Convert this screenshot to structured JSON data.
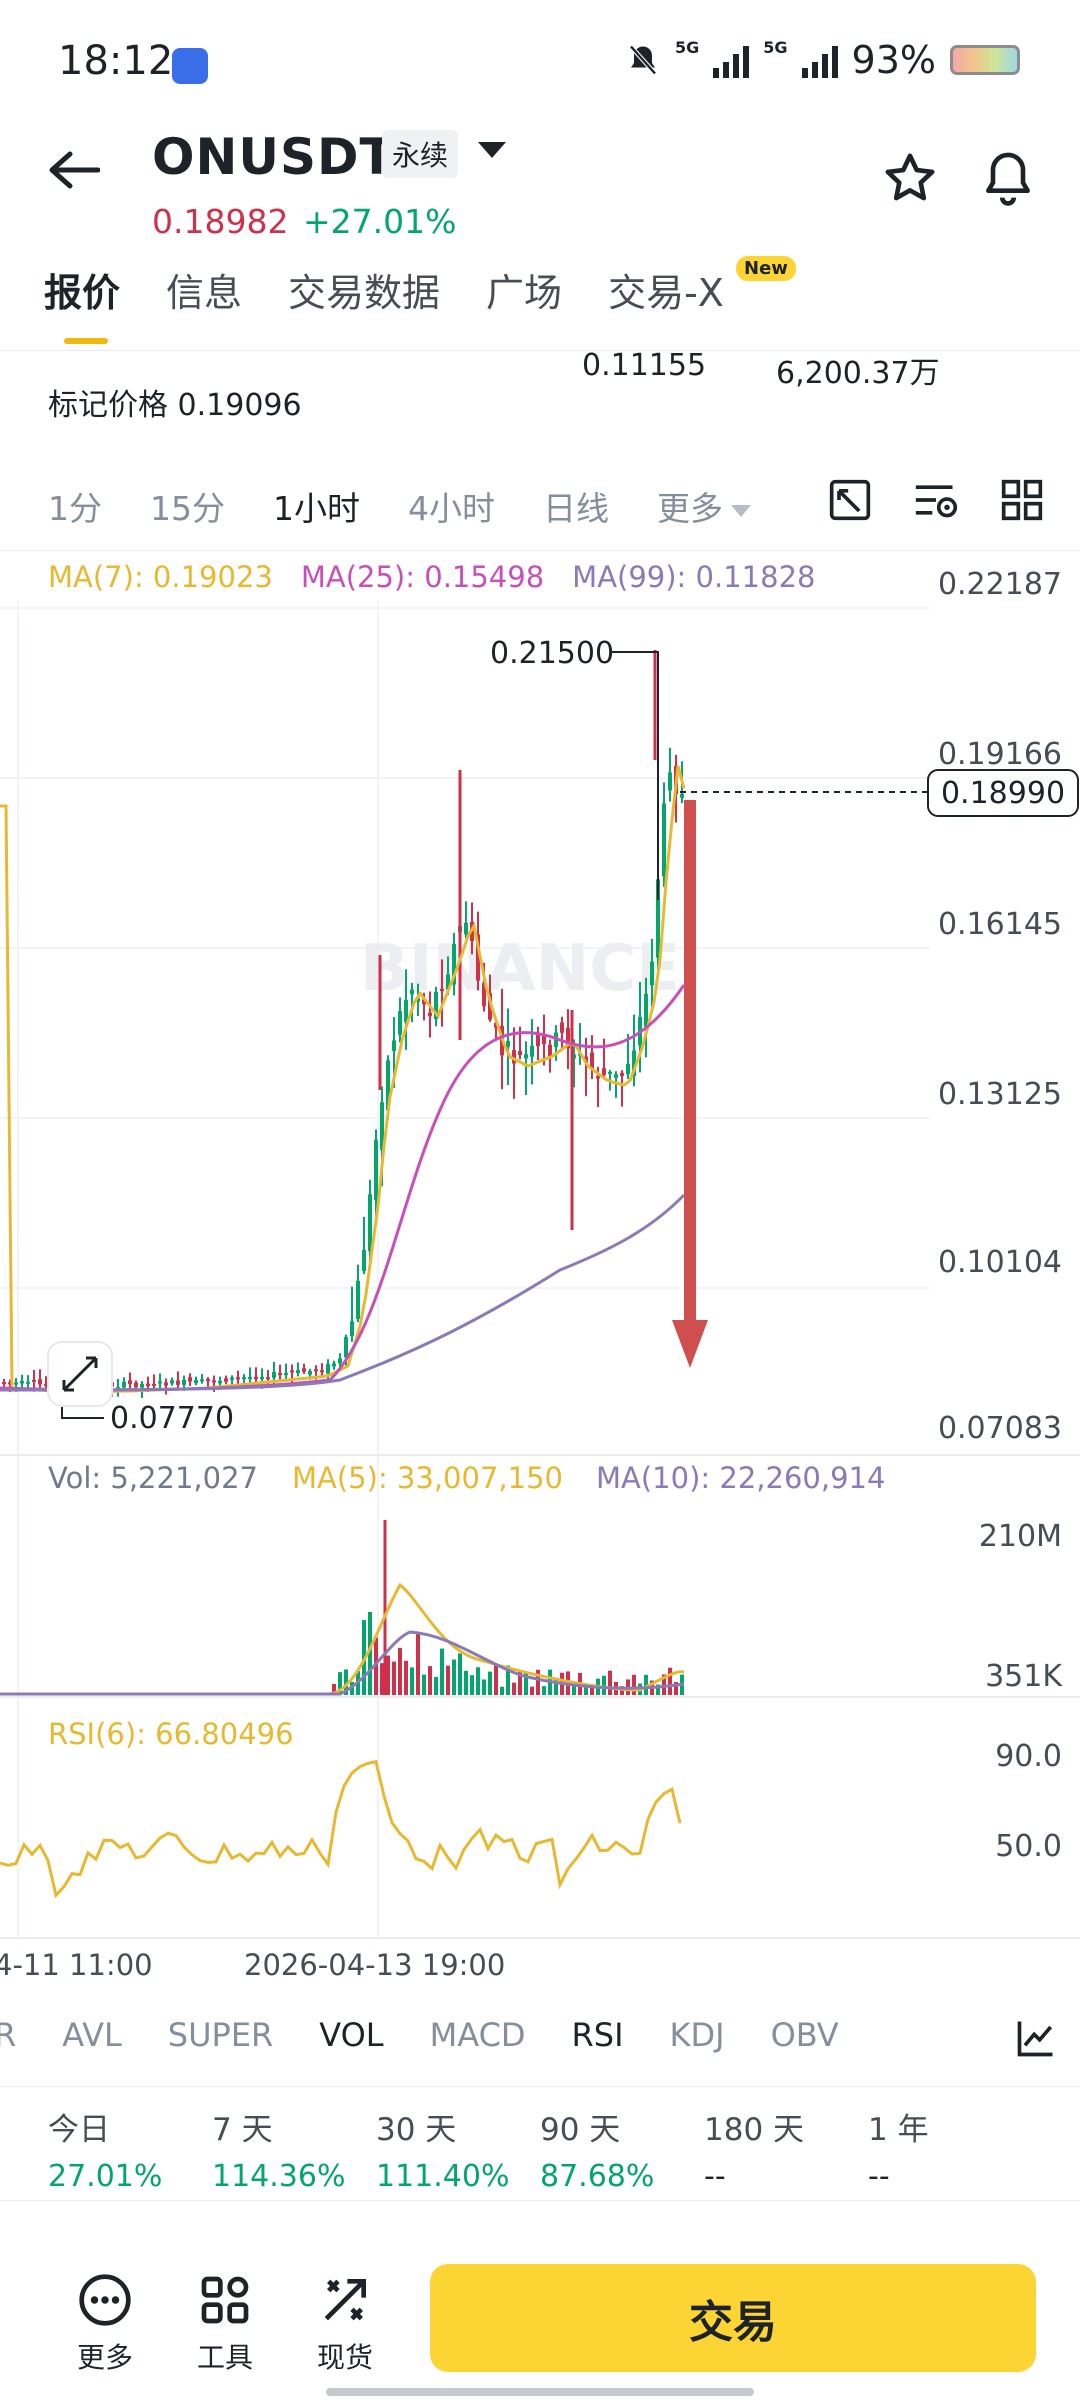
{
  "status_bar": {
    "time": "18:12",
    "net1": "5G",
    "net2": "5G",
    "battery": "93%"
  },
  "header": {
    "symbol": "ONUSDT",
    "contract_type": "永续",
    "last_price": "0.18982",
    "change_pct": "+27.01%"
  },
  "tabs": [
    {
      "label": "报价"
    },
    {
      "label": "信息"
    },
    {
      "label": "交易数据"
    },
    {
      "label": "广场"
    },
    {
      "label": "交易-X"
    }
  ],
  "new_badge": "New",
  "market_stats": {
    "mark_price_label": "标记价格",
    "mark_price": "0.19096",
    "low_value": "0.11155",
    "volume_value": "6,200.37万"
  },
  "intervals": {
    "items": [
      "1分",
      "15分",
      "1小时",
      "4小时",
      "日线"
    ],
    "more": "更多",
    "active": "1小时"
  },
  "ma_legend": {
    "ma7": "MA(7): 0.19023",
    "ma25": "MA(25): 0.15498",
    "ma99": "MA(99): 0.11828",
    "colors": {
      "ma7": "#e8b930",
      "ma25": "#c94fb8",
      "ma99": "#8a7ab8"
    }
  },
  "price_axis": [
    "0.22187",
    "0.19166",
    "0.16145",
    "0.13125",
    "0.10104",
    "0.07083"
  ],
  "price_labels": {
    "high": "0.21500",
    "low": "0.07770",
    "current": "0.18990"
  },
  "watermark": "BINANCE",
  "volume": {
    "vol": "Vol: 5,221,027",
    "ma5": "MA(5): 33,007,150",
    "ma10": "MA(10): 22,260,914",
    "axis_top": "210M",
    "axis_bottom": "351K"
  },
  "rsi": {
    "label": "RSI(6): 66.80496",
    "axis_top": "90.0",
    "axis_mid": "50.0"
  },
  "time_axis": [
    "4-11 11:00",
    "2026-04-13 19:00"
  ],
  "indicator_tabs": [
    "R",
    "AVL",
    "SUPER",
    "VOL",
    "MACD",
    "RSI",
    "KDJ",
    "OBV"
  ],
  "performance": [
    {
      "label": "今日",
      "value": "27.01%"
    },
    {
      "label": "7 天",
      "value": "114.36%"
    },
    {
      "label": "30 天",
      "value": "111.40%"
    },
    {
      "label": "90 天",
      "value": "87.68%"
    },
    {
      "label": "180 天",
      "value": "--"
    },
    {
      "label": "1 年",
      "value": "--"
    }
  ],
  "footer": {
    "more": "更多",
    "tools": "工具",
    "spot": "现货",
    "trade": "交易"
  },
  "colors": {
    "up": "#03a66d",
    "down": "#cf304a",
    "accent": "#fcd535"
  }
}
